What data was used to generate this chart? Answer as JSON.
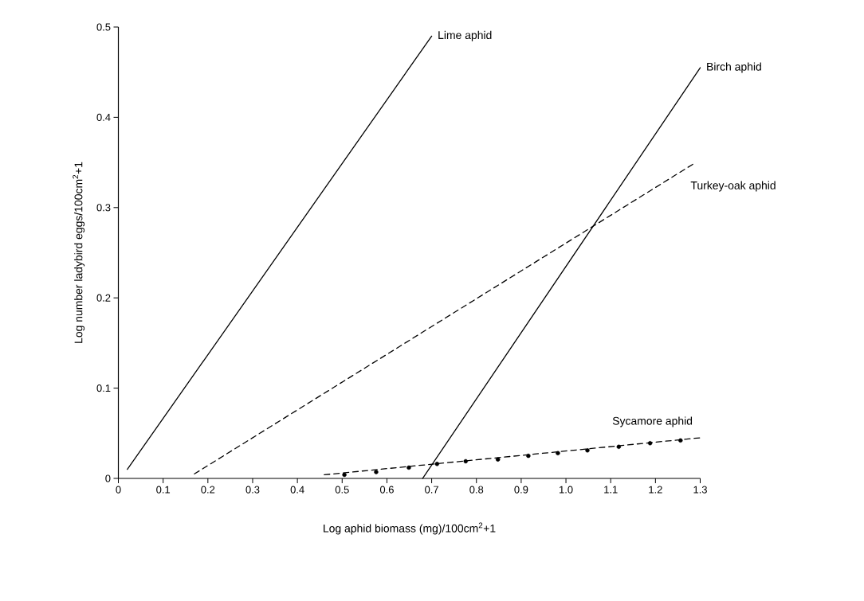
{
  "chart_data": {
    "type": "line",
    "xlabel": "Log aphid biomass (mg)/100cm$^{2}$+1",
    "ylabel": "Log number ladybird eggs/100cm$^{2}$+1",
    "xlim": [
      0,
      1.3
    ],
    "ylim": [
      0,
      0.5
    ],
    "xticks": [
      0,
      0.1,
      0.2,
      0.3,
      0.4,
      0.5,
      0.6,
      0.7,
      0.8,
      0.9,
      {
        "value": 1.0,
        "label": "1.0"
      },
      1.1,
      1.2,
      1.3
    ],
    "yticks": [
      0,
      0.1,
      0.2,
      0.3,
      0.4,
      0.5
    ],
    "grid": false,
    "marker": "none",
    "series": [
      {
        "name": "Lime aphid",
        "color": "#000000",
        "line_style": "solid",
        "x": [
          0.02,
          0.7
        ],
        "values": [
          0.01,
          0.49
        ]
      },
      {
        "name": "Birch aphid",
        "color": "#000000",
        "line_style": "solid",
        "x": [
          0.68,
          1.3
        ],
        "values": [
          0.0,
          0.455
        ]
      },
      {
        "name": "Turkey-oak aphid",
        "color": "#000000",
        "line_style": "dashed",
        "x": [
          0.17,
          1.29
        ],
        "values": [
          0.005,
          0.35
        ]
      },
      {
        "name": "Sycamore aphid",
        "color": "#000000",
        "line_style": "dashed",
        "x": [
          0.46,
          1.3
        ],
        "values": [
          0.004,
          0.045
        ]
      },
      {
        "type": "scatter",
        "color": "#000000",
        "marker": "circle",
        "x": [
          0.505,
          0.576,
          0.649,
          0.712,
          0.776,
          0.848,
          0.916,
          0.982,
          1.048,
          1.118,
          1.188,
          1.256
        ],
        "values": [
          0.004,
          0.007,
          0.012,
          0.016,
          0.019,
          0.021,
          0.025,
          0.028,
          0.031,
          0.035,
          0.039,
          0.042
        ]
      }
    ]
  }
}
